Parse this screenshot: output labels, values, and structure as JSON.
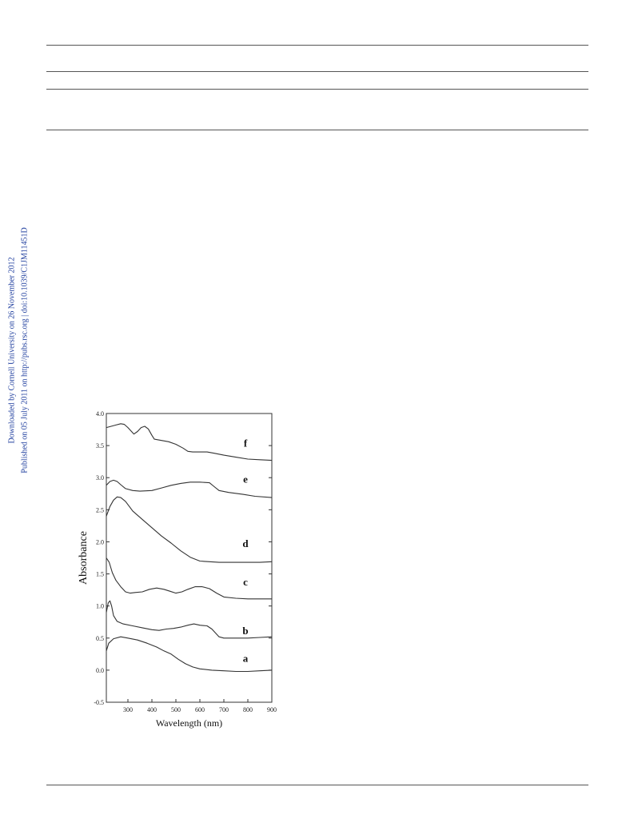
{
  "sidebar": {
    "line1": "Downloaded by Cornell University on 26 November 2012",
    "line2": "Published on 05 July 2011 on http://pubs.rsc.org | doi:10.1039/C1JM11451D"
  },
  "chart_data": {
    "type": "line",
    "xlabel": "Wavelength (nm)",
    "ylabel": "Absorbance",
    "xlim": [
      210,
      900
    ],
    "ylim": [
      -0.5,
      4.0
    ],
    "xticks": [
      300,
      400,
      500,
      600,
      700,
      800,
      900
    ],
    "yticks": [
      -0.5,
      0.0,
      0.5,
      1.0,
      1.5,
      2.0,
      2.5,
      3.0,
      3.5,
      4.0
    ],
    "ytick_labels": [
      "-0.5",
      "0.0",
      "0.5",
      "1.0",
      "1.5",
      "2.0",
      "2.5",
      "3.0",
      "3.5",
      "4.0"
    ],
    "grid": false,
    "series": [
      {
        "name": "a",
        "label_at": [
          790,
          0.13
        ],
        "points": [
          [
            210,
            0.3
          ],
          [
            220,
            0.42
          ],
          [
            240,
            0.49
          ],
          [
            270,
            0.52
          ],
          [
            300,
            0.5
          ],
          [
            340,
            0.47
          ],
          [
            380,
            0.42
          ],
          [
            420,
            0.36
          ],
          [
            450,
            0.3
          ],
          [
            480,
            0.25
          ],
          [
            510,
            0.17
          ],
          [
            540,
            0.1
          ],
          [
            570,
            0.05
          ],
          [
            600,
            0.02
          ],
          [
            650,
            0.0
          ],
          [
            700,
            -0.01
          ],
          [
            750,
            -0.02
          ],
          [
            800,
            -0.02
          ],
          [
            850,
            -0.01
          ],
          [
            900,
            0.0
          ]
        ]
      },
      {
        "name": "b",
        "label_at": [
          790,
          0.56
        ],
        "points": [
          [
            210,
            0.9
          ],
          [
            218,
            1.05
          ],
          [
            225,
            1.08
          ],
          [
            232,
            1.0
          ],
          [
            240,
            0.85
          ],
          [
            255,
            0.76
          ],
          [
            280,
            0.72
          ],
          [
            320,
            0.69
          ],
          [
            360,
            0.66
          ],
          [
            400,
            0.63
          ],
          [
            430,
            0.62
          ],
          [
            460,
            0.64
          ],
          [
            490,
            0.65
          ],
          [
            520,
            0.67
          ],
          [
            550,
            0.7
          ],
          [
            575,
            0.72
          ],
          [
            600,
            0.7
          ],
          [
            630,
            0.69
          ],
          [
            650,
            0.64
          ],
          [
            665,
            0.58
          ],
          [
            680,
            0.52
          ],
          [
            700,
            0.5
          ],
          [
            750,
            0.5
          ],
          [
            800,
            0.5
          ],
          [
            850,
            0.51
          ],
          [
            900,
            0.52
          ]
        ]
      },
      {
        "name": "c",
        "label_at": [
          790,
          1.32
        ],
        "points": [
          [
            210,
            1.75
          ],
          [
            222,
            1.68
          ],
          [
            235,
            1.52
          ],
          [
            250,
            1.4
          ],
          [
            270,
            1.3
          ],
          [
            290,
            1.22
          ],
          [
            310,
            1.2
          ],
          [
            330,
            1.21
          ],
          [
            360,
            1.22
          ],
          [
            390,
            1.26
          ],
          [
            420,
            1.28
          ],
          [
            450,
            1.26
          ],
          [
            475,
            1.23
          ],
          [
            500,
            1.2
          ],
          [
            525,
            1.22
          ],
          [
            550,
            1.26
          ],
          [
            580,
            1.3
          ],
          [
            610,
            1.3
          ],
          [
            640,
            1.27
          ],
          [
            670,
            1.2
          ],
          [
            700,
            1.14
          ],
          [
            750,
            1.12
          ],
          [
            800,
            1.11
          ],
          [
            850,
            1.11
          ],
          [
            900,
            1.11
          ]
        ]
      },
      {
        "name": "d",
        "label_at": [
          790,
          1.92
        ],
        "points": [
          [
            210,
            2.4
          ],
          [
            225,
            2.55
          ],
          [
            240,
            2.65
          ],
          [
            255,
            2.7
          ],
          [
            270,
            2.69
          ],
          [
            290,
            2.63
          ],
          [
            320,
            2.48
          ],
          [
            360,
            2.35
          ],
          [
            400,
            2.22
          ],
          [
            440,
            2.09
          ],
          [
            480,
            1.98
          ],
          [
            520,
            1.86
          ],
          [
            560,
            1.76
          ],
          [
            600,
            1.7
          ],
          [
            640,
            1.69
          ],
          [
            680,
            1.68
          ],
          [
            720,
            1.68
          ],
          [
            800,
            1.68
          ],
          [
            850,
            1.68
          ],
          [
            900,
            1.69
          ]
        ]
      },
      {
        "name": "e",
        "label_at": [
          790,
          2.92
        ],
        "points": [
          [
            210,
            2.88
          ],
          [
            225,
            2.94
          ],
          [
            240,
            2.96
          ],
          [
            255,
            2.94
          ],
          [
            270,
            2.89
          ],
          [
            290,
            2.83
          ],
          [
            320,
            2.8
          ],
          [
            350,
            2.79
          ],
          [
            400,
            2.8
          ],
          [
            440,
            2.84
          ],
          [
            480,
            2.88
          ],
          [
            520,
            2.91
          ],
          [
            560,
            2.93
          ],
          [
            600,
            2.93
          ],
          [
            640,
            2.92
          ],
          [
            660,
            2.86
          ],
          [
            680,
            2.8
          ],
          [
            720,
            2.77
          ],
          [
            780,
            2.74
          ],
          [
            830,
            2.71
          ],
          [
            900,
            2.69
          ]
        ]
      },
      {
        "name": "f",
        "label_at": [
          790,
          3.48
        ],
        "points": [
          [
            210,
            3.78
          ],
          [
            230,
            3.8
          ],
          [
            250,
            3.82
          ],
          [
            270,
            3.84
          ],
          [
            285,
            3.83
          ],
          [
            300,
            3.78
          ],
          [
            315,
            3.72
          ],
          [
            325,
            3.68
          ],
          [
            340,
            3.72
          ],
          [
            355,
            3.78
          ],
          [
            370,
            3.8
          ],
          [
            385,
            3.76
          ],
          [
            400,
            3.66
          ],
          [
            410,
            3.6
          ],
          [
            440,
            3.58
          ],
          [
            470,
            3.56
          ],
          [
            500,
            3.52
          ],
          [
            530,
            3.46
          ],
          [
            550,
            3.41
          ],
          [
            570,
            3.4
          ],
          [
            600,
            3.4
          ],
          [
            630,
            3.4
          ],
          [
            660,
            3.38
          ],
          [
            700,
            3.35
          ],
          [
            750,
            3.32
          ],
          [
            800,
            3.29
          ],
          [
            850,
            3.28
          ],
          [
            900,
            3.27
          ]
        ]
      }
    ]
  }
}
